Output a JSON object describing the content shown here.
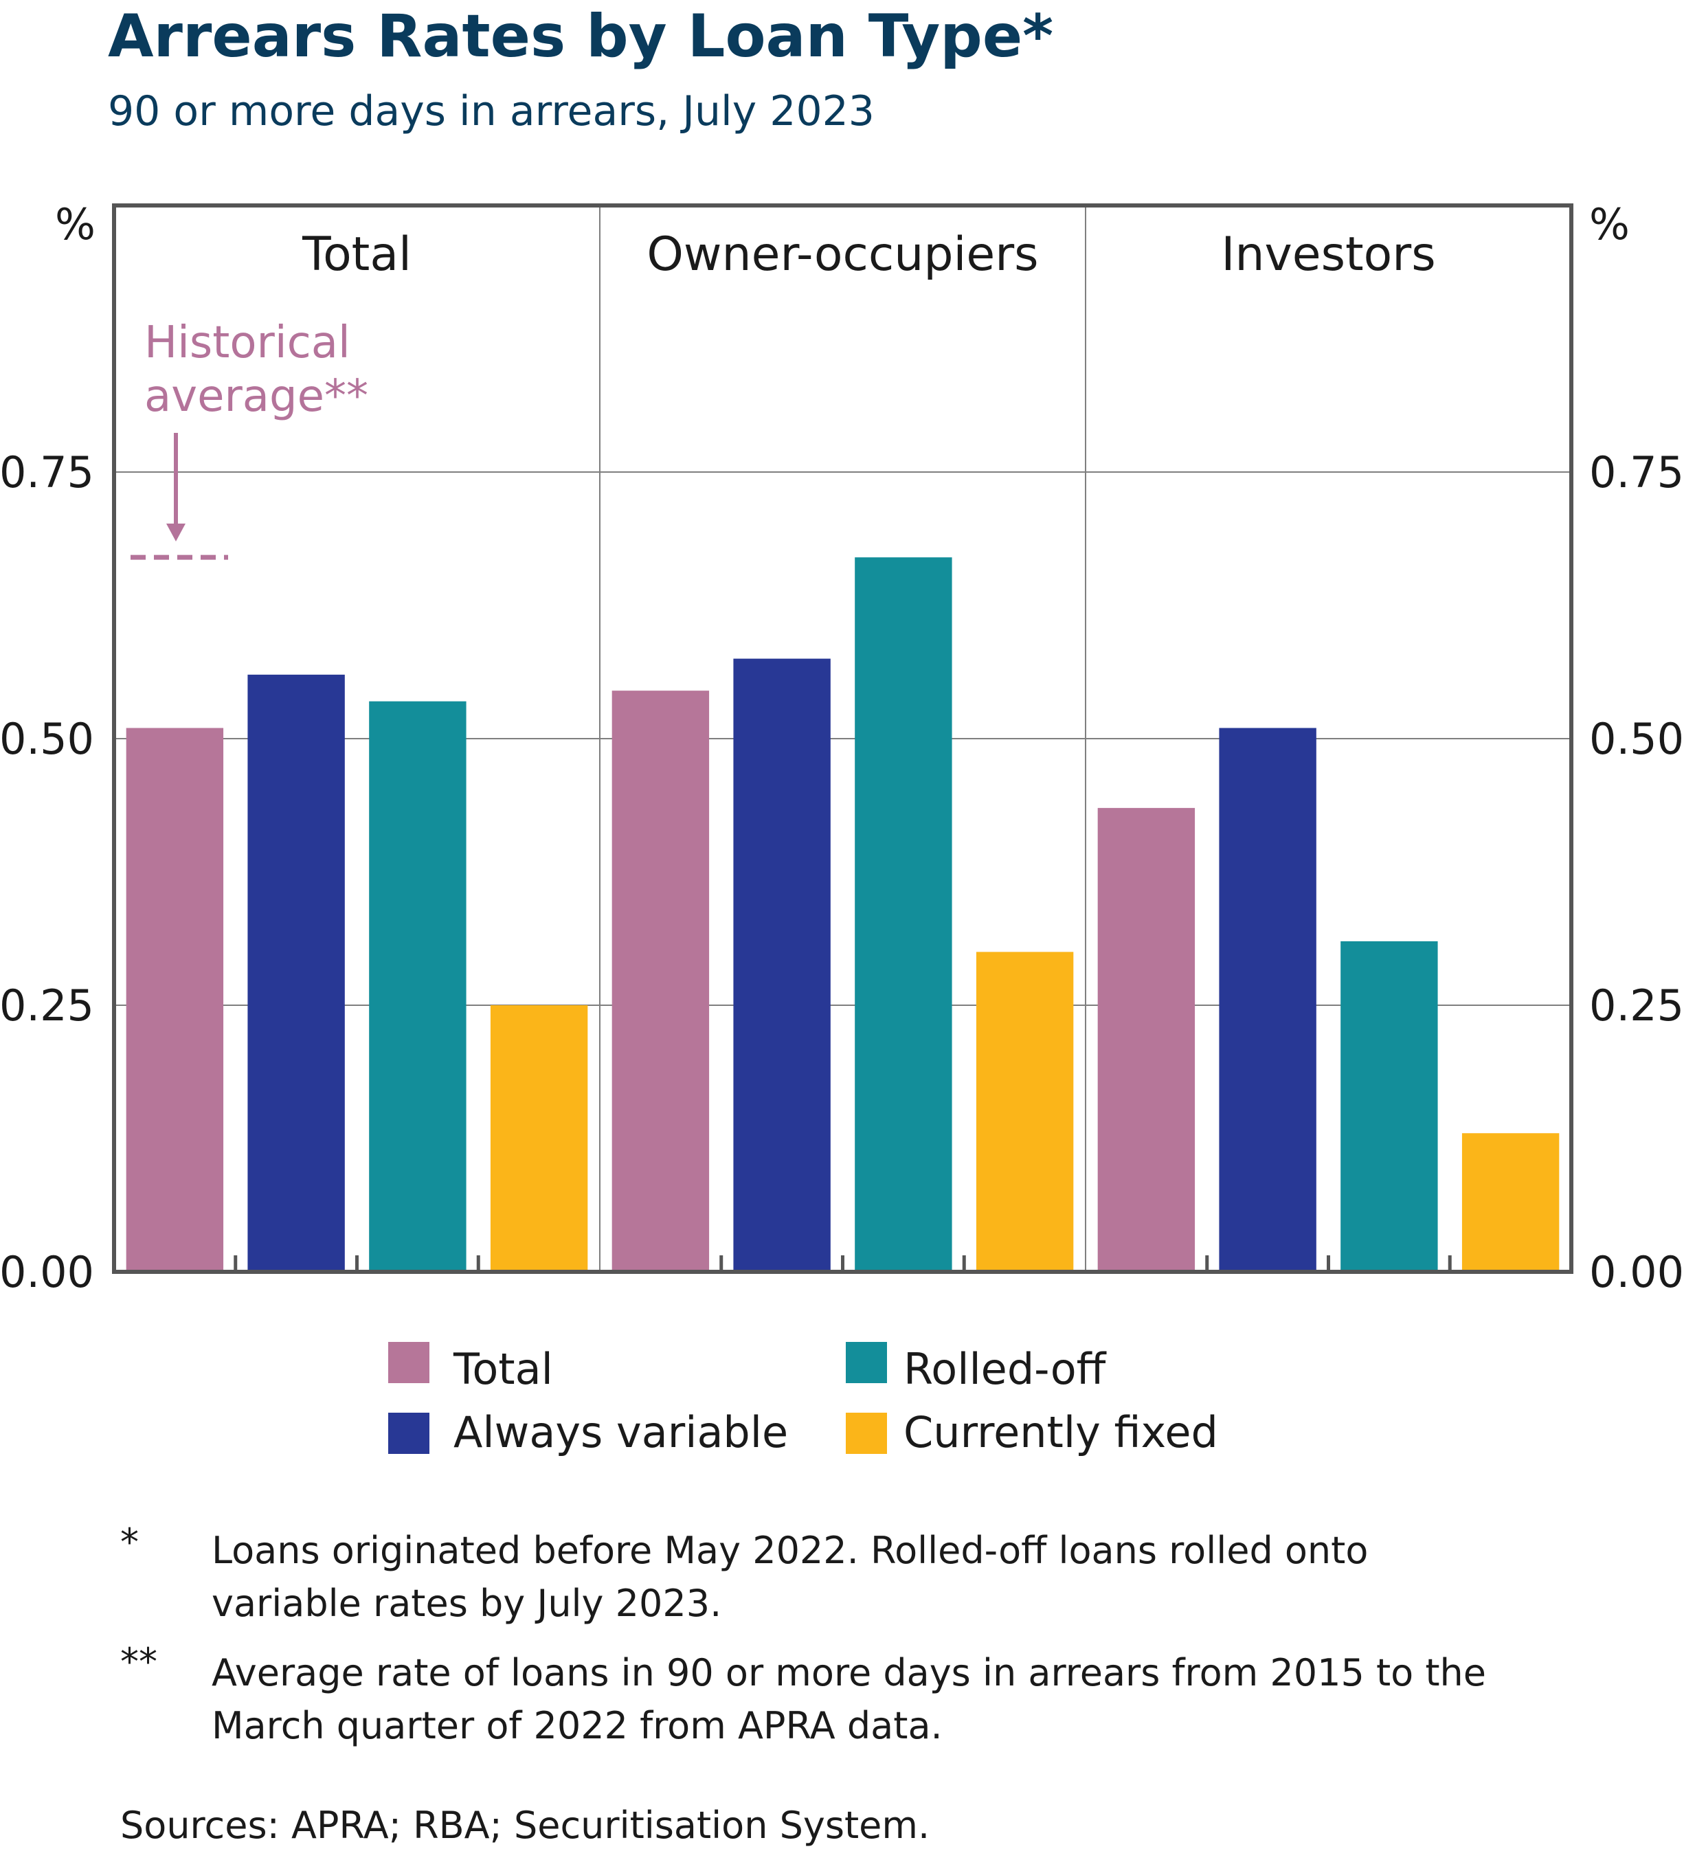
{
  "title": "Arrears Rates by Loan Type*",
  "subtitle": "90 or more days in arrears, July 2023",
  "y_unit_left": "%",
  "y_unit_right": "%",
  "colors": {
    "total": "#b67699",
    "always_variable": "#283895",
    "rolled_off": "#138e9a",
    "currently_fixed": "#fbb519",
    "frame": "#555555",
    "grid": "#7f7f7f",
    "annotation": "#b4739a"
  },
  "chart_data": {
    "type": "bar",
    "title": "Arrears Rates by Loan Type*",
    "subtitle": "90 or more days in arrears, July 2023",
    "categories": [
      "Total",
      "Owner-occupiers",
      "Investors"
    ],
    "series": [
      {
        "name": "Total",
        "values": [
          0.51,
          0.545,
          0.435
        ]
      },
      {
        "name": "Always variable",
        "values": [
          0.56,
          0.575,
          0.51
        ]
      },
      {
        "name": "Rolled-off",
        "values": [
          0.535,
          0.67,
          0.31
        ]
      },
      {
        "name": "Currently fixed",
        "values": [
          0.25,
          0.3,
          0.13
        ]
      }
    ],
    "ylim": [
      0,
      1.0
    ],
    "yticks": [
      "0.00",
      "0.25",
      "0.50",
      "0.75"
    ],
    "ytick_values": [
      0,
      0.25,
      0.5,
      0.75
    ],
    "historical_average": 0.67,
    "grid": true,
    "legend_position": "bottom"
  },
  "annotation": {
    "line1": "Historical",
    "line2": "average**"
  },
  "legend": [
    {
      "label": "Total"
    },
    {
      "label": "Always variable"
    },
    {
      "label": "Rolled-off"
    },
    {
      "label": "Currently fixed"
    }
  ],
  "footnotes": [
    {
      "mark": "*",
      "line1": "Loans originated before May 2022. Rolled-off loans rolled onto",
      "line2": "variable rates by July 2023."
    },
    {
      "mark": "**",
      "line1": "Average rate of loans in 90 or more days in arrears from 2015 to the",
      "line2": "March quarter of 2022 from APRA data."
    }
  ],
  "sources": "Sources: APRA; RBA; Securitisation System."
}
